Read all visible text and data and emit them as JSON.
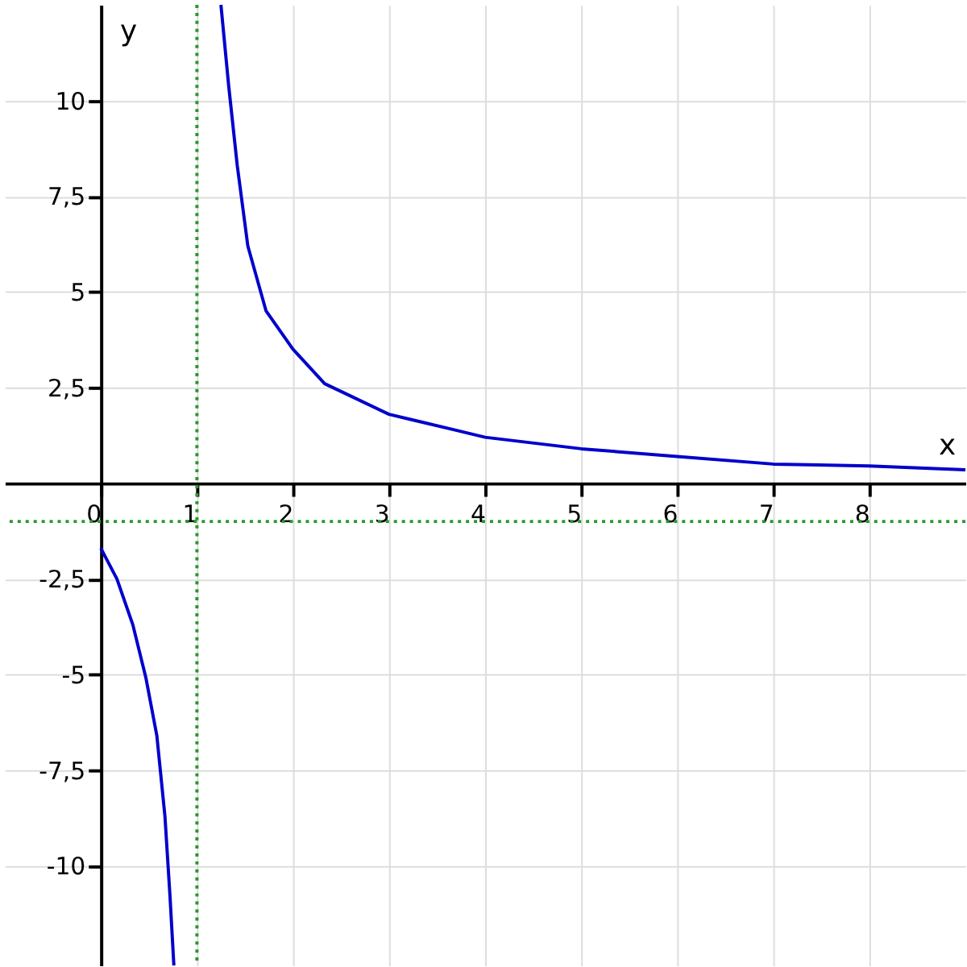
{
  "chart_data": {
    "type": "line",
    "xlabel": "x",
    "ylabel": "y",
    "xlim": [
      -1,
      9
    ],
    "ylim": [
      -12.6,
      12.5
    ],
    "xticks": [
      0,
      1,
      2,
      3,
      4,
      5,
      6,
      7,
      8
    ],
    "yticks": [
      {
        "value": -10,
        "label": "-10"
      },
      {
        "value": -7.5,
        "label": "-7,5"
      },
      {
        "value": -5,
        "label": "-5"
      },
      {
        "value": -2.5,
        "label": "-2,5"
      },
      {
        "value": 2.5,
        "label": "2,5"
      },
      {
        "value": 5,
        "label": "5"
      },
      {
        "value": 7.5,
        "label": "7,5"
      },
      {
        "value": 10,
        "label": "10"
      }
    ],
    "grid": true,
    "marker": "none",
    "line_style": "solid",
    "series": [
      {
        "color": "#0000cc",
        "x": [
          0,
          0.167,
          0.333,
          0.47,
          0.583,
          0.667,
          0.72,
          0.76,
          1,
          1.25,
          1.33,
          1.42,
          1.53,
          1.72,
          2,
          2.33,
          3,
          3.67,
          4,
          5,
          6,
          7,
          8,
          9
        ],
        "values": [
          -1.7,
          -2.5,
          -3.7,
          -5.1,
          -6.6,
          -8.7,
          -10.8,
          -12.6,
          null,
          12.5,
          10.4,
          8.3,
          6.2,
          4.5,
          3.5,
          2.6,
          1.8,
          1.4,
          1.2,
          0.9,
          0.7,
          0.5,
          0.45,
          0.35
        ]
      }
    ],
    "ref_lines": [
      {
        "axis": "x",
        "value": 1,
        "color": "#2a9a2a",
        "line_style": "dotted"
      },
      {
        "axis": "y",
        "value": -1,
        "color": "#2a9a2a",
        "line_style": "dotted"
      }
    ]
  }
}
